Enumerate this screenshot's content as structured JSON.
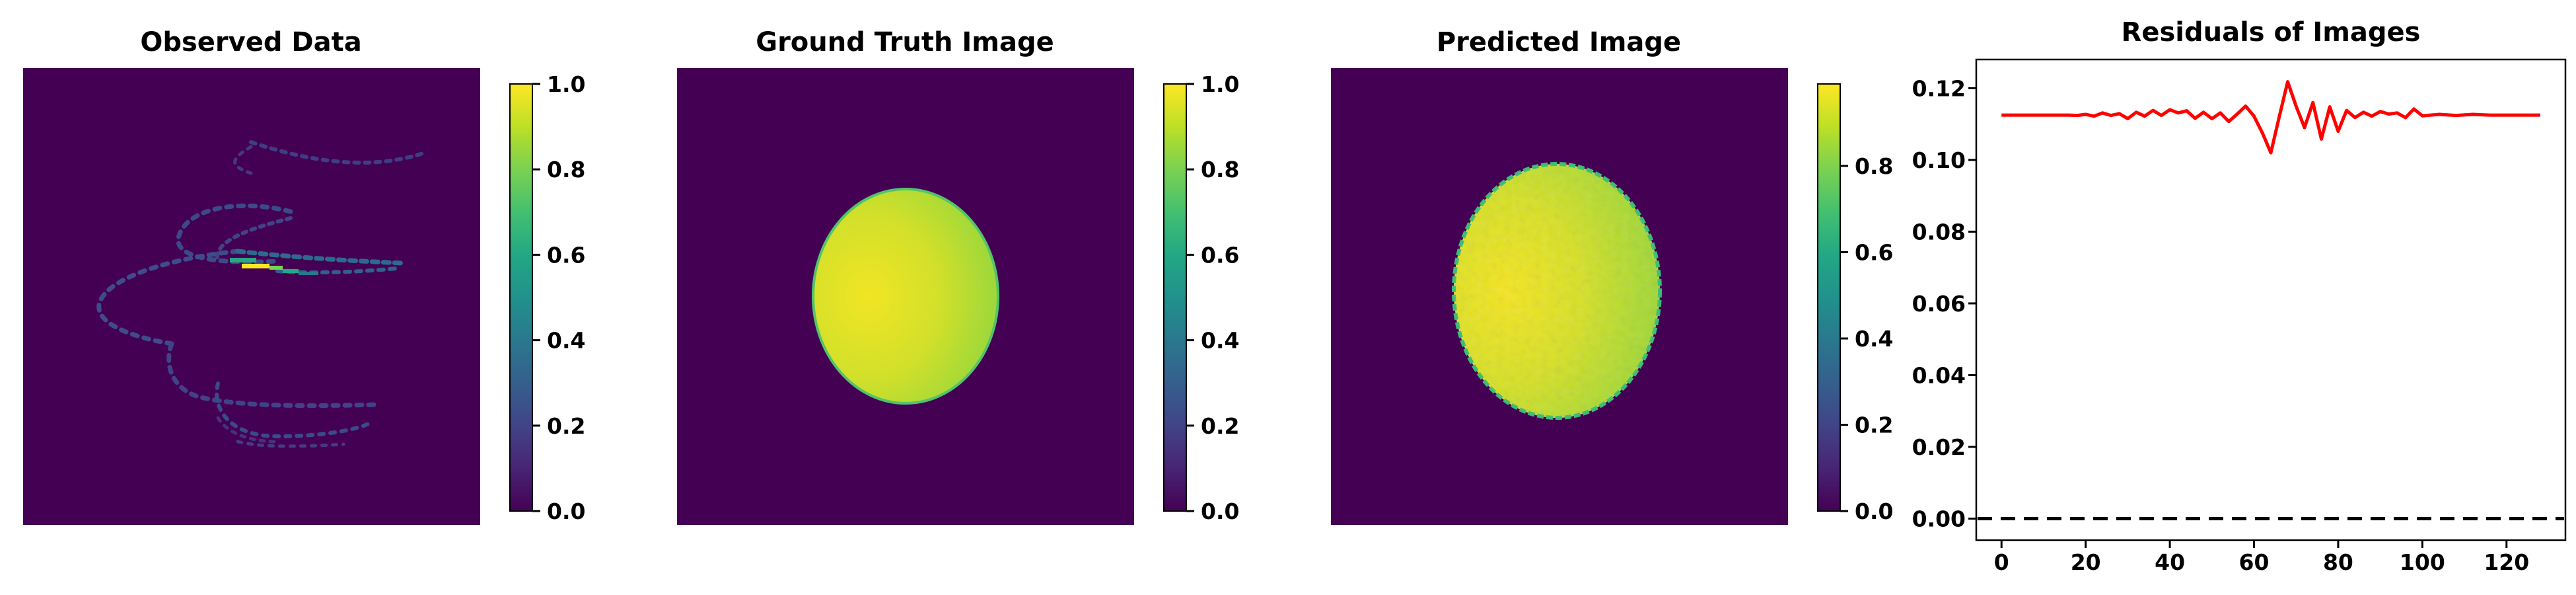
{
  "chart_data": [
    {
      "type": "heatmap",
      "title": "Observed Data",
      "colormap": "viridis",
      "colorbar": {
        "range": [
          0.0,
          1.0
        ],
        "ticks": [
          "0.0",
          "0.2",
          "0.4",
          "0.6",
          "0.8",
          "1.0"
        ]
      },
      "content": "sparse spiral-shaped scan samples, mostly near zero with a bright streak near center"
    },
    {
      "type": "heatmap",
      "title": "Ground Truth Image",
      "colormap": "viridis",
      "colorbar": {
        "range": [
          0.0,
          1.0
        ],
        "ticks": [
          "0.0",
          "0.2",
          "0.4",
          "0.6",
          "0.8",
          "1.0"
        ]
      },
      "content": "bright ellipse on dark background"
    },
    {
      "type": "heatmap",
      "title": "Predicted Image",
      "colormap": "viridis",
      "colorbar": {
        "range": [
          0.0,
          0.99
        ],
        "ticks": [
          "0.0",
          "0.2",
          "0.4",
          "0.6",
          "0.8"
        ]
      },
      "content": "bright ellipse with noisy edges on dark background"
    },
    {
      "type": "line",
      "title": "Residuals of Images",
      "xlim": [
        -6,
        134
      ],
      "ylim": [
        -0.006,
        0.128
      ],
      "xticks": [
        "0",
        "20",
        "40",
        "60",
        "80",
        "100",
        "120"
      ],
      "yticks": [
        "0.00",
        "0.02",
        "0.04",
        "0.06",
        "0.08",
        "0.10",
        "0.12"
      ],
      "series": [
        {
          "color": "#ff0000",
          "x": [
            0,
            4,
            8,
            12,
            16,
            18,
            20,
            22,
            24,
            26,
            28,
            30,
            32,
            34,
            36,
            38,
            40,
            42,
            44,
            46,
            48,
            50,
            52,
            54,
            56,
            58,
            60,
            62,
            64,
            66,
            68,
            70,
            72,
            74,
            76,
            78,
            80,
            82,
            84,
            86,
            88,
            90,
            92,
            94,
            96,
            98,
            100,
            104,
            108,
            112,
            116,
            120,
            124,
            128
          ],
          "y": [
            0.1125,
            0.1125,
            0.1125,
            0.1125,
            0.1125,
            0.1124,
            0.1127,
            0.1122,
            0.1131,
            0.1124,
            0.1129,
            0.1115,
            0.1133,
            0.1122,
            0.1138,
            0.1124,
            0.114,
            0.1131,
            0.1137,
            0.1116,
            0.1133,
            0.1115,
            0.1131,
            0.1107,
            0.1128,
            0.115,
            0.1122,
            0.1075,
            0.102,
            0.112,
            0.1218,
            0.115,
            0.109,
            0.116,
            0.1058,
            0.1148,
            0.108,
            0.1138,
            0.1118,
            0.1133,
            0.1122,
            0.1135,
            0.1128,
            0.1131,
            0.1118,
            0.1142,
            0.1123,
            0.1127,
            0.1124,
            0.1127,
            0.1125,
            0.1125,
            0.1125,
            0.1125
          ]
        }
      ],
      "reference_line": {
        "y": 0.0,
        "style": "dashed",
        "color": "#000000"
      }
    }
  ]
}
